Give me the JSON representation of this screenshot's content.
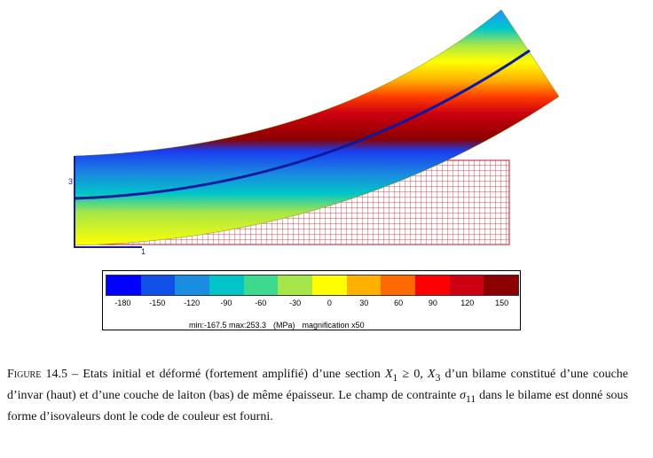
{
  "axes": {
    "x_label": "1",
    "y_label": "3"
  },
  "legend": {
    "colors": [
      "#0000ff",
      "#1050e8",
      "#1a8de0",
      "#00c4c8",
      "#3dd98c",
      "#a6e64a",
      "#ffff00",
      "#ffb000",
      "#ff6a00",
      "#ff0000",
      "#cc0010",
      "#8b0000"
    ],
    "ticks": [
      "-180",
      "-150",
      "-120",
      "-90",
      "-60",
      "-30",
      "0",
      "30",
      "60",
      "90",
      "120",
      "150"
    ],
    "min_max": "min:-167.5 max:253.3",
    "unit": "(MPa)",
    "magnification": "magnification x50"
  },
  "caption": {
    "label": "Figure 14.5",
    "dash": " – ",
    "part1": "Etats initial et déformé (fortement amplifié) d’une section ",
    "math1": "X",
    "sub1": "1",
    "math_mid": " ≥ 0, ",
    "math2": "X",
    "sub2": "3",
    "part2": " d’un bilame constitué d’une couche d’invar (haut) et d’une couche de laiton (bas) de même épaisseur. Le champ de contrainte ",
    "sigma": "σ",
    "sigma_sub": "11",
    "part3": " dans le bilame est donné sous forme d’isovaleurs dont le code de couleur est fourni."
  }
}
